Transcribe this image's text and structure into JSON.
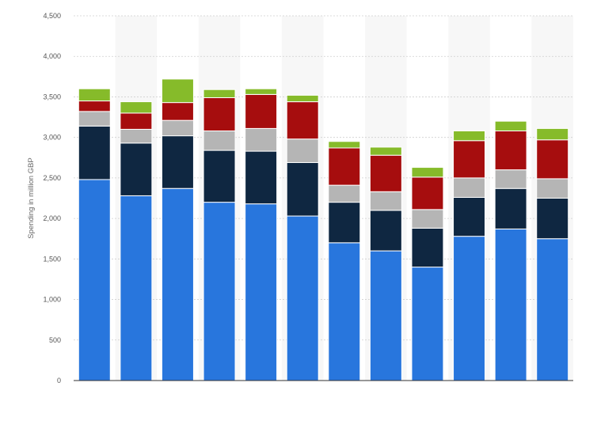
{
  "chart_data": {
    "type": "bar",
    "stacked": true,
    "title": "",
    "xlabel": "",
    "ylabel": "Spending in million GBP",
    "ylim": [
      0,
      4500
    ],
    "y_ticks": [
      0,
      500,
      1000,
      1500,
      2000,
      2500,
      3000,
      3500,
      4000,
      4500
    ],
    "y_tick_labels": [
      "0",
      "500",
      "1,000",
      "1,500",
      "2,000",
      "2,500",
      "3,000",
      "3,500",
      "4,000",
      "4,500"
    ],
    "categories": [
      "",
      "",
      "",
      "",
      "",
      "",
      "",
      "",
      "",
      "",
      "",
      ""
    ],
    "grid": "horizontal-dashed",
    "legend": "none",
    "series": [
      {
        "color": "#2876dd",
        "values": [
          2480,
          2280,
          2370,
          2200,
          2180,
          2030,
          1700,
          1600,
          1400,
          1780,
          1870,
          1750
        ]
      },
      {
        "color": "#0f2741",
        "values": [
          660,
          650,
          650,
          640,
          650,
          660,
          500,
          500,
          480,
          480,
          500,
          500
        ]
      },
      {
        "color": "#b5b5b5",
        "values": [
          180,
          170,
          190,
          240,
          280,
          290,
          210,
          230,
          230,
          240,
          230,
          240
        ]
      },
      {
        "color": "#a60d0e",
        "values": [
          130,
          200,
          220,
          410,
          420,
          460,
          460,
          450,
          400,
          460,
          480,
          480
        ]
      },
      {
        "color": "#86bb2a",
        "values": [
          150,
          140,
          290,
          100,
          70,
          80,
          80,
          100,
          120,
          120,
          120,
          140
        ]
      }
    ]
  }
}
